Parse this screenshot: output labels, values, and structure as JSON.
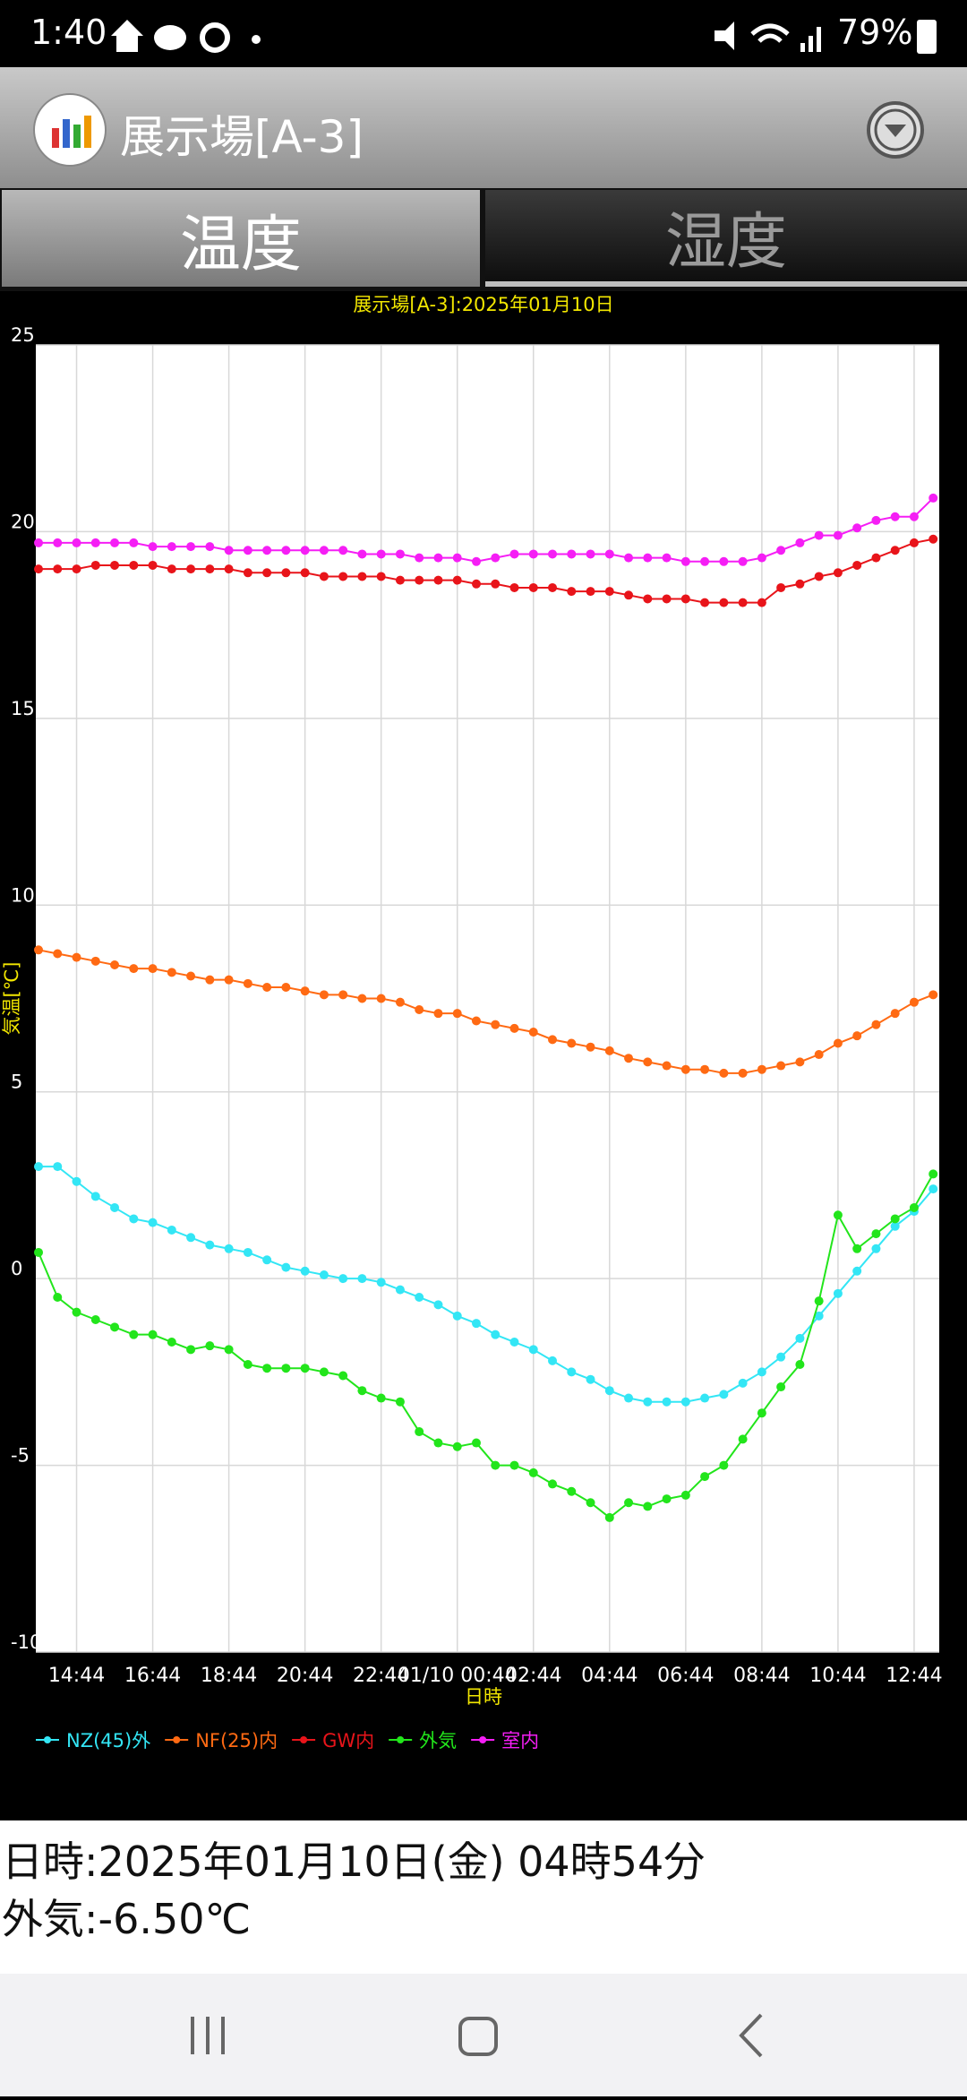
{
  "status_bar": {
    "time": "1:40",
    "battery": "79%"
  },
  "header": {
    "title": "展示場[A-3]"
  },
  "tabs": [
    "温度",
    "湿度"
  ],
  "chart_data": {
    "type": "line",
    "title": "展示場[A-3]:2025年01月10日",
    "x_label": "日時",
    "y_label": "気温[℃]",
    "x": [
      "13:44",
      "14:14",
      "14:44",
      "15:14",
      "15:44",
      "16:14",
      "16:44",
      "17:14",
      "17:44",
      "18:14",
      "18:44",
      "19:14",
      "19:44",
      "20:14",
      "20:44",
      "21:14",
      "21:44",
      "22:14",
      "22:44",
      "23:14",
      "23:44",
      "00:14",
      "01/10 00:44",
      "01:14",
      "01:44",
      "02:14",
      "02:44",
      "03:14",
      "03:44",
      "04:14",
      "04:44",
      "05:14",
      "05:44",
      "06:14",
      "06:44",
      "07:14",
      "07:44",
      "08:14",
      "08:44",
      "09:14",
      "09:44",
      "10:14",
      "10:44",
      "11:14",
      "11:44",
      "12:14",
      "12:44",
      "13:14"
    ],
    "xticks": [
      "14:44",
      "16:44",
      "18:44",
      "20:44",
      "22:44",
      "01/10 00:44",
      "02:44",
      "04:44",
      "06:44",
      "08:44",
      "10:44",
      "12:44"
    ],
    "ylim": [
      -10,
      25
    ],
    "yticks": [
      -10,
      -5,
      0,
      5,
      10,
      15,
      20,
      25
    ],
    "grid": true,
    "legend": "bottom",
    "series": [
      {
        "name": "NZ(45)外",
        "color": "#33e6f5",
        "values": [
          3.0,
          3.0,
          2.6,
          2.2,
          1.9,
          1.6,
          1.5,
          1.3,
          1.1,
          0.9,
          0.8,
          0.7,
          0.5,
          0.3,
          0.2,
          0.1,
          0.0,
          0.0,
          -0.1,
          -0.3,
          -0.5,
          -0.7,
          -1.0,
          -1.2,
          -1.5,
          -1.7,
          -1.9,
          -2.2,
          -2.5,
          -2.7,
          -3.0,
          -3.2,
          -3.3,
          -3.3,
          -3.3,
          -3.2,
          -3.1,
          -2.8,
          -2.5,
          -2.1,
          -1.6,
          -1.0,
          -0.4,
          0.2,
          0.8,
          1.4,
          1.8,
          2.4
        ]
      },
      {
        "name": "NF(25)内",
        "color": "#ff6a13",
        "values": [
          8.8,
          8.7,
          8.6,
          8.5,
          8.4,
          8.3,
          8.3,
          8.2,
          8.1,
          8.0,
          8.0,
          7.9,
          7.8,
          7.8,
          7.7,
          7.6,
          7.6,
          7.5,
          7.5,
          7.4,
          7.2,
          7.1,
          7.1,
          6.9,
          6.8,
          6.7,
          6.6,
          6.4,
          6.3,
          6.2,
          6.1,
          5.9,
          5.8,
          5.7,
          5.6,
          5.6,
          5.5,
          5.5,
          5.6,
          5.7,
          5.8,
          6.0,
          6.3,
          6.5,
          6.8,
          7.1,
          7.4,
          7.6
        ]
      },
      {
        "name": "GW内",
        "color": "#e8141a",
        "values": [
          19.0,
          19.0,
          19.0,
          19.1,
          19.1,
          19.1,
          19.1,
          19.0,
          19.0,
          19.0,
          19.0,
          18.9,
          18.9,
          18.9,
          18.9,
          18.8,
          18.8,
          18.8,
          18.8,
          18.7,
          18.7,
          18.7,
          18.7,
          18.6,
          18.6,
          18.5,
          18.5,
          18.5,
          18.4,
          18.4,
          18.4,
          18.3,
          18.2,
          18.2,
          18.2,
          18.1,
          18.1,
          18.1,
          18.1,
          18.5,
          18.6,
          18.8,
          18.9,
          19.1,
          19.3,
          19.5,
          19.7,
          19.8
        ]
      },
      {
        "name": "外気",
        "color": "#22e51b",
        "values": [
          0.7,
          -0.5,
          -0.9,
          -1.1,
          -1.3,
          -1.5,
          -1.5,
          -1.7,
          -1.9,
          -1.8,
          -1.9,
          -2.3,
          -2.4,
          -2.4,
          -2.4,
          -2.5,
          -2.6,
          -3.0,
          -3.2,
          -3.3,
          -4.1,
          -4.4,
          -4.5,
          -4.4,
          -5.0,
          -5.0,
          -5.2,
          -5.5,
          -5.7,
          -6.0,
          -6.4,
          -6.0,
          -6.1,
          -5.9,
          -5.8,
          -5.3,
          -5.0,
          -4.3,
          -3.6,
          -2.9,
          -2.3,
          -0.6,
          1.7,
          0.8,
          1.2,
          1.6,
          1.9,
          2.8
        ]
      },
      {
        "name": "室内",
        "color": "#f51ef5",
        "values": [
          19.7,
          19.7,
          19.7,
          19.7,
          19.7,
          19.7,
          19.6,
          19.6,
          19.6,
          19.6,
          19.5,
          19.5,
          19.5,
          19.5,
          19.5,
          19.5,
          19.5,
          19.4,
          19.4,
          19.4,
          19.3,
          19.3,
          19.3,
          19.2,
          19.3,
          19.4,
          19.4,
          19.4,
          19.4,
          19.4,
          19.4,
          19.3,
          19.3,
          19.3,
          19.2,
          19.2,
          19.2,
          19.2,
          19.3,
          19.5,
          19.7,
          19.9,
          19.9,
          20.1,
          20.3,
          20.4,
          20.4,
          20.9
        ]
      }
    ]
  },
  "info": {
    "datetime": "日時:2025年01月10日(金) 04時54分",
    "outside": "外気:-6.50℃"
  }
}
